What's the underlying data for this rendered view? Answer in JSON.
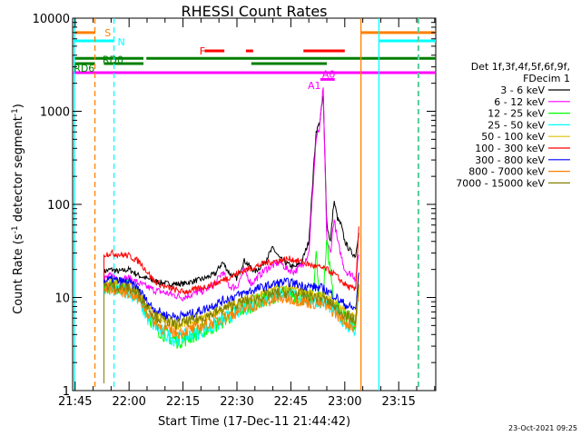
{
  "chart_data": {
    "type": "line",
    "title": "RHESSI Count Rates",
    "xlabel": "Start Time (17-Dec-11 21:44:42)",
    "ylabel_main": "Count Rate (s",
    "ylabel_sup1": "-1",
    "ylabel_mid": " detector segment",
    "ylabel_sup2": "-1",
    "ylabel_end": ")",
    "yscale": "log",
    "ylim": [
      1,
      10000
    ],
    "xlim_minutes": [
      -0.7,
      100.3
    ],
    "x_ticks": [
      {
        "label": "21:45",
        "minute": 0
      },
      {
        "label": "22:00",
        "minute": 15
      },
      {
        "label": "22:15",
        "minute": 30
      },
      {
        "label": "22:30",
        "minute": 45
      },
      {
        "label": "22:45",
        "minute": 60
      },
      {
        "label": "23:00",
        "minute": 75
      },
      {
        "label": "23:15",
        "minute": 90
      }
    ],
    "y_ticks": [
      {
        "label": "1",
        "value": 1
      },
      {
        "label": "10",
        "value": 10
      },
      {
        "label": "100",
        "value": 100
      },
      {
        "label": "1000",
        "value": 1000
      },
      {
        "label": "10000",
        "value": 10000
      }
    ],
    "legend_header": [
      "Det 1f,3f,4f,5f,6f,9f,",
      "FDecim 1"
    ],
    "legend_placement": "right",
    "series": [
      {
        "name": "3 - 6 keV",
        "color": "#000000",
        "x": [
          8,
          10,
          12,
          15,
          18,
          22,
          26,
          30,
          33,
          36,
          39,
          41,
          43,
          45,
          47,
          50,
          52,
          55,
          57,
          59,
          61,
          63,
          65,
          67,
          68,
          69,
          70,
          71,
          72,
          73,
          74,
          75,
          76,
          77,
          78,
          79
        ],
        "y": [
          19,
          20,
          19,
          20,
          17,
          15,
          14,
          14,
          15,
          16,
          18,
          24,
          18,
          16,
          25,
          19,
          22,
          34,
          26,
          23,
          21,
          24,
          40,
          600,
          750,
          1500,
          60,
          40,
          110,
          70,
          60,
          40,
          34,
          30,
          28,
          55
        ]
      },
      {
        "name": "6 - 12 keV",
        "color": "#ff00ff",
        "x": [
          8,
          10,
          12,
          15,
          18,
          22,
          26,
          30,
          33,
          36,
          39,
          41,
          43,
          45,
          47,
          49,
          51,
          53,
          55,
          57,
          59,
          61,
          63,
          65,
          67,
          68,
          69,
          70,
          71,
          72,
          73,
          74,
          75,
          76,
          77,
          78,
          79
        ],
        "y": [
          16,
          17,
          16,
          16,
          14,
          12,
          11,
          10,
          11,
          12,
          14,
          19,
          13,
          13,
          20,
          14,
          17,
          20,
          22,
          24,
          20,
          19,
          22,
          30,
          500,
          650,
          1800,
          40,
          30,
          70,
          40,
          28,
          20,
          18,
          18,
          16,
          30
        ]
      },
      {
        "name": "12 - 25 keV",
        "color": "#00ff00",
        "x": [
          8,
          10,
          12,
          15,
          18,
          20,
          22,
          25,
          28,
          30,
          33,
          36,
          39,
          42,
          45,
          48,
          51,
          54,
          57,
          60,
          63,
          66,
          67,
          68,
          69,
          70,
          72,
          74,
          76,
          78,
          79
        ],
        "y": [
          13,
          14,
          13,
          13,
          10,
          7,
          5,
          4,
          3.5,
          3.5,
          4,
          4.5,
          5,
          6,
          7,
          8,
          9,
          10,
          11,
          11,
          10,
          10,
          30,
          9,
          12,
          40,
          9,
          7,
          6,
          5,
          20
        ]
      },
      {
        "name": "25 - 50 keV",
        "color": "#00ffff",
        "x": [
          8,
          10,
          12,
          15,
          18,
          20,
          22,
          25,
          28,
          30,
          33,
          36,
          39,
          42,
          45,
          48,
          51,
          54,
          57,
          60,
          63,
          66,
          69,
          72,
          74,
          76,
          78,
          79
        ],
        "y": [
          12,
          12.5,
          12,
          11.5,
          9,
          6,
          5,
          4,
          3.5,
          3.8,
          4,
          4.5,
          5,
          6,
          7,
          8,
          9,
          10,
          11,
          11,
          10,
          9.5,
          9,
          7.5,
          6,
          5,
          4.5,
          15
        ]
      },
      {
        "name": "50 - 100 keV",
        "color": "#e0c000",
        "x": [
          8,
          10,
          12,
          15,
          18,
          20,
          22,
          25,
          28,
          30,
          33,
          36,
          39,
          42,
          45,
          48,
          51,
          54,
          57,
          60,
          63,
          66,
          69,
          72,
          74,
          76,
          78,
          79
        ],
        "y": [
          14,
          14.5,
          14,
          13.5,
          11,
          8,
          6.5,
          5.5,
          5,
          5.2,
          5.5,
          6,
          6.8,
          7.8,
          8.8,
          9.8,
          10.5,
          11.5,
          12.5,
          12.5,
          11.5,
          11,
          10.5,
          9,
          7.5,
          6.5,
          6,
          18
        ]
      },
      {
        "name": "100 - 300 keV",
        "color": "#ff0000",
        "x": [
          8,
          10,
          12,
          15,
          18,
          20,
          22,
          25,
          28,
          30,
          33,
          36,
          39,
          42,
          45,
          48,
          51,
          54,
          57,
          60,
          63,
          66,
          68,
          70,
          72,
          74,
          76,
          78,
          79
        ],
        "y": [
          29,
          30,
          29,
          28,
          24,
          19,
          15,
          13,
          12,
          11.5,
          12,
          13,
          14,
          16,
          18,
          20,
          22,
          24,
          25,
          26,
          24,
          22,
          21,
          20,
          18,
          15,
          13,
          12,
          70
        ]
      },
      {
        "name": "300 - 800 keV",
        "color": "#0000ff",
        "x": [
          8,
          10,
          12,
          15,
          18,
          20,
          22,
          25,
          28,
          30,
          33,
          36,
          39,
          42,
          45,
          48,
          51,
          54,
          57,
          60,
          63,
          66,
          69,
          72,
          74,
          76,
          78,
          79
        ],
        "y": [
          15,
          15.5,
          15,
          14.5,
          12,
          9,
          7.5,
          6.5,
          6.2,
          6.4,
          6.8,
          7.5,
          8.5,
          9.5,
          10.5,
          11.5,
          12.5,
          13.5,
          14.5,
          14.5,
          13.5,
          13,
          12.5,
          10.5,
          9,
          8,
          7.5,
          20
        ]
      },
      {
        "name": "800 - 7000 keV",
        "color": "#ff8000",
        "x": [
          8,
          10,
          12,
          15,
          18,
          20,
          22,
          25,
          28,
          30,
          33,
          36,
          39,
          42,
          45,
          48,
          51,
          54,
          57,
          60,
          63,
          66,
          69,
          72,
          74,
          76,
          78,
          79
        ],
        "y": [
          12,
          12.5,
          12,
          11.5,
          9.5,
          7,
          5.5,
          4.5,
          4.2,
          4.3,
          4.6,
          5,
          5.5,
          6.2,
          7,
          7.8,
          8.5,
          9.2,
          9.8,
          9.8,
          9.2,
          8.8,
          8.4,
          7,
          6,
          5.2,
          4.8,
          14
        ]
      },
      {
        "name": "7000 - 15000 keV",
        "color": "#808000",
        "x": [
          8,
          10,
          12,
          15,
          18,
          20,
          22,
          25,
          28,
          30,
          33,
          36,
          39,
          42,
          45,
          48,
          51,
          54,
          57,
          60,
          63,
          66,
          69,
          72,
          74,
          76,
          78,
          79
        ],
        "y": [
          13,
          13.5,
          13,
          12.5,
          10.5,
          8,
          6.5,
          5.5,
          5.2,
          5.4,
          5.7,
          6.2,
          6.9,
          7.7,
          8.5,
          9.3,
          10,
          10.7,
          11.3,
          11.3,
          10.7,
          10.2,
          9.8,
          8.2,
          7,
          6.2,
          5.7,
          16
        ]
      }
    ],
    "annotations": [
      {
        "text": "S",
        "color": "#ff8000",
        "minute": 8.2,
        "value": 7000
      },
      {
        "text": "N",
        "color": "#00ffff",
        "minute": 11.8,
        "value": 5600
      },
      {
        "text": "F",
        "color": "#ff0000",
        "minute": 34.6,
        "value": 4450
      },
      {
        "text": "RD0",
        "color": "#008000",
        "minute": 7.6,
        "value": 3600
      },
      {
        "text": "RD6",
        "color": "#008000",
        "minute": -0.4,
        "value": 2900
      },
      {
        "text": "A1",
        "color": "#ff00ff",
        "minute": 64.7,
        "value": 1900
      },
      {
        "text": "A0",
        "color": "#ff00ff",
        "minute": 68.7,
        "value": 2500
      }
    ],
    "state_bars": [
      {
        "color": "#ff8000",
        "value": 7000,
        "from": -0.2,
        "to": 5.6
      },
      {
        "color": "#ff8000",
        "value": 7000,
        "from": 79.5,
        "to": 100.3
      },
      {
        "color": "#00ffff",
        "value": 5700,
        "from": -0.2,
        "to": 10.8
      },
      {
        "color": "#00ffff",
        "value": 5700,
        "from": 84.5,
        "to": 100.3
      },
      {
        "color": "#ff0000",
        "value": 4450,
        "from": 36.0,
        "to": 41.5
      },
      {
        "color": "#ff0000",
        "value": 4450,
        "from": 47.5,
        "to": 49.5
      },
      {
        "color": "#ff0000",
        "value": 4450,
        "from": 63.5,
        "to": 75.0
      },
      {
        "color": "#008000",
        "value": 3700,
        "from": -0.2,
        "to": 19.0
      },
      {
        "color": "#008000",
        "value": 3700,
        "from": 19.8,
        "to": 100.3
      },
      {
        "color": "#008000",
        "value": 3250,
        "from": -0.2,
        "to": 5.5
      },
      {
        "color": "#008000",
        "value": 3250,
        "from": 8.0,
        "to": 19.0
      },
      {
        "color": "#008000",
        "value": 3250,
        "from": 49.0,
        "to": 70.0
      },
      {
        "color": "#ff00ff",
        "value": 2600,
        "from": -0.7,
        "to": 100.3
      },
      {
        "color": "#ff00ff",
        "value": 2200,
        "from": 68.2,
        "to": 72.2
      }
    ],
    "vertical_markers": [
      {
        "color": "#00ffff",
        "minute": -0.2,
        "style": "solid"
      },
      {
        "color": "#ff8000",
        "minute": 5.5,
        "style": "dashed"
      },
      {
        "color": "#00ffff",
        "minute": 10.8,
        "style": "dashed"
      },
      {
        "color": "#ff8000",
        "minute": 79.5,
        "style": "solid"
      },
      {
        "color": "#00ffff",
        "minute": 84.5,
        "style": "solid"
      },
      {
        "color": "#ff8000",
        "minute": 95.4,
        "style": "dashed"
      },
      {
        "color": "#00ffff",
        "minute": 95.6,
        "style": "dashed"
      }
    ],
    "footer_date": "23-Oct-2021 09:25"
  }
}
